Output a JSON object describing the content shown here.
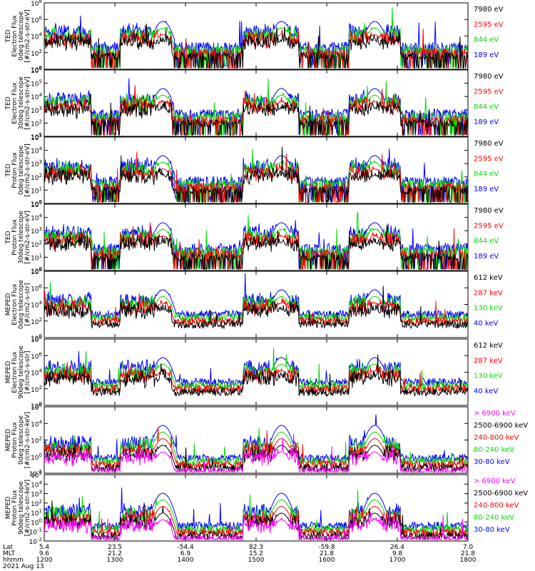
{
  "chart_data": {
    "type": "line",
    "time_axis": {
      "rows": [
        {
          "label": "Lat",
          "values": [
            "5.4",
            "23.5",
            "-54.4",
            "82.3",
            "-59.8",
            "26.4",
            "7.0"
          ]
        },
        {
          "label": "MLT",
          "values": [
            "9.6",
            "21.2",
            "6.9",
            "15.2",
            "21.8",
            "9.8",
            "21.8"
          ]
        },
        {
          "label": "hhmm",
          "values": [
            "1200",
            "1300",
            "1400",
            "1500",
            "1600",
            "1700",
            "1800"
          ]
        }
      ],
      "date": "2021 Aug 13",
      "range": [
        "1200",
        "1800"
      ]
    },
    "panels": [
      {
        "ylabel": [
          "TED",
          "Electron Flux",
          "0deg telescope",
          "[#/cm2-s-str-eV]"
        ],
        "ytick_exponents": [
          0,
          2,
          4,
          6,
          8
        ],
        "ylim_exp": [
          0,
          8
        ],
        "series": [
          {
            "name": "7980 eV",
            "color": "#000000"
          },
          {
            "name": "2595 eV",
            "color": "#ff0000"
          },
          {
            "name": "844 eV",
            "color": "#00dd00"
          },
          {
            "name": "189 eV",
            "color": "#0000ff"
          }
        ]
      },
      {
        "ylabel": [
          "TED",
          "Electron Flux",
          "30deg telescope",
          "[#/cm2-s-str-eV]"
        ],
        "ytick_exponents": [
          1,
          2,
          3,
          4,
          5,
          6
        ],
        "ylim_exp": [
          1,
          6
        ],
        "series": [
          {
            "name": "7980 eV",
            "color": "#000000"
          },
          {
            "name": "2595 eV",
            "color": "#ff0000"
          },
          {
            "name": "844 eV",
            "color": "#00dd00"
          },
          {
            "name": "189 eV",
            "color": "#0000ff"
          }
        ]
      },
      {
        "ylabel": [
          "TED",
          "Proton Flux",
          "0deg telescope",
          "[#/cm2-s-str-eV]"
        ],
        "ytick_exponents": [
          0,
          1,
          2,
          3,
          4,
          5
        ],
        "ylim_exp": [
          0,
          5
        ],
        "series": [
          {
            "name": "7980 eV",
            "color": "#000000"
          },
          {
            "name": "2595 eV",
            "color": "#ff0000"
          },
          {
            "name": "844 eV",
            "color": "#00dd00"
          },
          {
            "name": "189 eV",
            "color": "#0000ff"
          }
        ]
      },
      {
        "ylabel": [
          "TED",
          "Proton Flux",
          "30deg telescope",
          "[#/cm2-s-str-eV]"
        ],
        "ytick_exponents": [
          0,
          1,
          2,
          3,
          4,
          5
        ],
        "ylim_exp": [
          0,
          5
        ],
        "series": [
          {
            "name": "7980 eV",
            "color": "#000000"
          },
          {
            "name": "2595 eV",
            "color": "#ff0000"
          },
          {
            "name": "844 eV",
            "color": "#00dd00"
          },
          {
            "name": "189 eV",
            "color": "#0000ff"
          }
        ]
      },
      {
        "ylabel": [
          "MEPED",
          "Electron Flux",
          "0deg telescope",
          "[#/cm2-s-str]"
        ],
        "ytick_exponents": [
          0,
          2,
          4,
          6,
          8
        ],
        "ylim_exp": [
          0,
          8
        ],
        "series": [
          {
            "name": "612 keV",
            "color": "#000000"
          },
          {
            "name": "287 keV",
            "color": "#ff0000"
          },
          {
            "name": "130 keV",
            "color": "#00dd00"
          },
          {
            "name": "40 keV",
            "color": "#0000ff"
          }
        ]
      },
      {
        "ylabel": [
          "MEPED",
          "Electron Flux",
          "90deg telescope",
          "[#/cm2-s-str]"
        ],
        "ytick_exponents": [
          0,
          2,
          4,
          6,
          8
        ],
        "ylim_exp": [
          0,
          8
        ],
        "series": [
          {
            "name": "612 keV",
            "color": "#000000"
          },
          {
            "name": "287 keV",
            "color": "#ff0000"
          },
          {
            "name": "130 keV",
            "color": "#00dd00"
          },
          {
            "name": "40 keV",
            "color": "#0000ff"
          }
        ]
      },
      {
        "ylabel": [
          "MEPED",
          "Proton Flux",
          "0deg telescope",
          "[#/cm2-s-str-keV]"
        ],
        "ytick_exponents": [
          -2,
          0,
          2,
          4,
          6
        ],
        "ylim_exp": [
          -2,
          6
        ],
        "series": [
          {
            "name": "> 6900 keV",
            "color": "#ff00ff"
          },
          {
            "name": "2500-6900 keV",
            "color": "#000000"
          },
          {
            "name": "240-800 keV",
            "color": "#ff0000"
          },
          {
            "name": "80-240 keV",
            "color": "#00dd00"
          },
          {
            "name": "30-80 keV",
            "color": "#0000ff"
          }
        ]
      },
      {
        "ylabel": [
          "MEPED",
          "Proton Flux",
          "90deg telescope",
          "[#/cm2-s-str-keV]"
        ],
        "ytick_exponents": [
          -2,
          -1,
          0,
          1,
          2,
          3,
          4,
          5
        ],
        "ylim_exp": [
          -2,
          5
        ],
        "series": [
          {
            "name": "> 6900 keV",
            "color": "#ff00ff"
          },
          {
            "name": "2500-6900 keV",
            "color": "#000000"
          },
          {
            "name": "240-800 keV",
            "color": "#ff0000"
          },
          {
            "name": "80-240 keV",
            "color": "#00dd00"
          },
          {
            "name": "30-80 keV",
            "color": "#0000ff"
          }
        ]
      }
    ]
  }
}
